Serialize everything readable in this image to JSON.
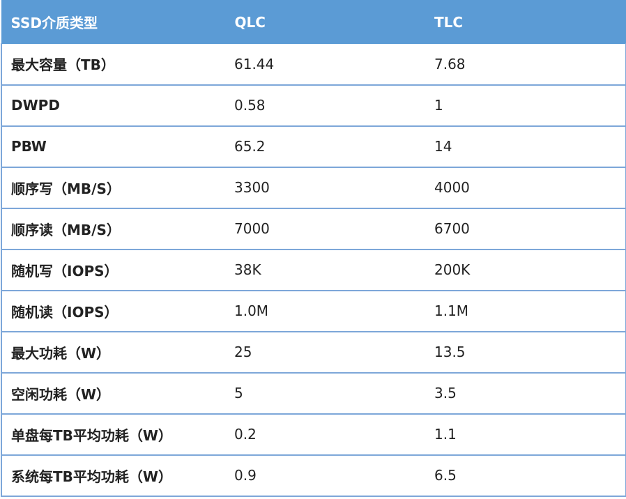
{
  "table": {
    "header": [
      "SSD介质类型",
      "QLC",
      "TLC"
    ],
    "rows": [
      [
        "最大容量（TB）",
        "61.44",
        "7.68"
      ],
      [
        "DWPD",
        "0.58",
        "1"
      ],
      [
        "PBW",
        "65.2",
        "14"
      ],
      [
        "顺序写（MB/S）",
        "3300",
        "4000"
      ],
      [
        "顺序读（MB/S）",
        "7000",
        "6700"
      ],
      [
        "随机写（IOPS）",
        "38K",
        "200K"
      ],
      [
        "随机读（IOPS）",
        "1.0M",
        "1.1M"
      ],
      [
        "最大功耗（W）",
        "25",
        "13.5"
      ],
      [
        "空闲功耗（W）",
        "5",
        "3.5"
      ],
      [
        "单盘每TB平均功耗（W）",
        "0.2",
        "1.1"
      ],
      [
        "系统每TB平均功耗（W）",
        "0.9",
        "6.5"
      ]
    ]
  }
}
